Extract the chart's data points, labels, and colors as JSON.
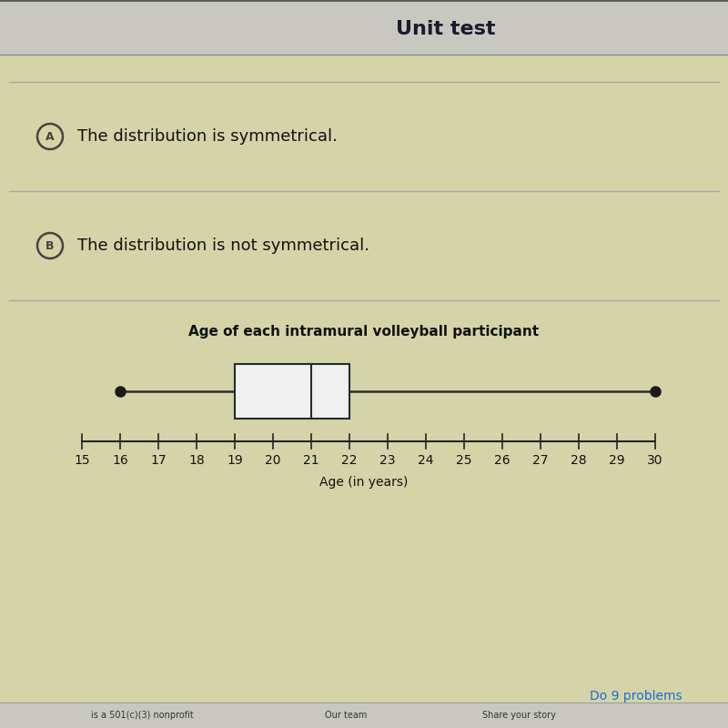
{
  "title": "Unit test",
  "option_A": "The distribution is symmetrical.",
  "option_B": "The distribution is not symmetrical.",
  "chart_title": "Age of each intramural volleyball participant",
  "xlabel": "Age (in years)",
  "xmin": 15,
  "xmax": 30,
  "whisker_min": 16,
  "Q1": 19,
  "median": 21,
  "Q3": 22,
  "whisker_max": 30,
  "bg_color": "#cccba0",
  "header_bg": "#c8c8c0",
  "content_bg": "#d4d4a8",
  "line_color": "#2a2a2a",
  "box_face_color": "#f0f0f0",
  "dot_color": "#1a1a1a",
  "option_circle_color": "#444444",
  "divider_color": "#aaa9a0",
  "title_fontsize": 16,
  "option_fontsize": 13,
  "chart_title_fontsize": 11,
  "tick_fontsize": 10,
  "xlabel_fontsize": 10,
  "do9_color": "#1a6fd4"
}
